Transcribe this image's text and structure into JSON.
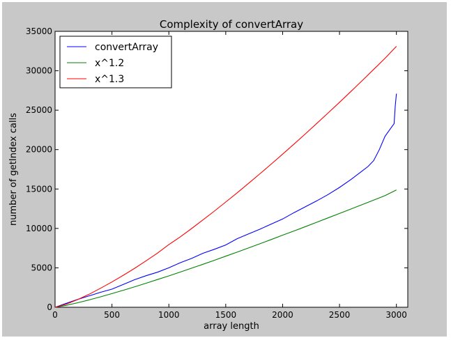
{
  "chart_data": {
    "type": "line",
    "title": "Complexity of convertArray",
    "xlabel": "array length",
    "ylabel": "number of getIndex calls",
    "xlim": [
      0,
      3100
    ],
    "ylim": [
      0,
      35000
    ],
    "xticks": [
      0,
      500,
      1000,
      1500,
      2000,
      2500,
      3000
    ],
    "yticks": [
      0,
      5000,
      10000,
      15000,
      20000,
      25000,
      30000,
      35000
    ],
    "grid": false,
    "legend_position": "top-left",
    "series": [
      {
        "name": "convertArray",
        "color": "#0000ff",
        "x": [
          0,
          100,
          200,
          300,
          400,
          500,
          600,
          700,
          800,
          900,
          1000,
          1100,
          1200,
          1300,
          1400,
          1500,
          1600,
          1700,
          1800,
          1900,
          2000,
          2100,
          2200,
          2300,
          2400,
          2500,
          2600,
          2700,
          2750,
          2800,
          2850,
          2900,
          2950,
          2980,
          2990,
          3000
        ],
        "y": [
          0,
          500,
          1000,
          1450,
          1900,
          2300,
          2900,
          3500,
          4000,
          4450,
          5000,
          5650,
          6200,
          6850,
          7350,
          7900,
          8700,
          9300,
          9900,
          10550,
          11200,
          12000,
          12750,
          13500,
          14300,
          15200,
          16200,
          17300,
          17850,
          18600,
          20000,
          21700,
          22700,
          23300,
          25500,
          27100
        ]
      },
      {
        "name": "x^1.2",
        "color": "#008000",
        "x": [
          0,
          100,
          200,
          300,
          400,
          500,
          600,
          700,
          800,
          900,
          1000,
          1100,
          1200,
          1300,
          1400,
          1500,
          1600,
          1700,
          1800,
          1900,
          2000,
          2100,
          2200,
          2300,
          2400,
          2500,
          2600,
          2700,
          2800,
          2900,
          3000
        ],
        "y": [
          0,
          251,
          577,
          938,
          1325,
          1733,
          2158,
          2598,
          3050,
          3514,
          3981,
          4467,
          4957,
          5455,
          5961,
          6475,
          6995,
          7521,
          8053,
          8590,
          9146,
          9677,
          10226,
          10779,
          11336,
          11896,
          12460,
          13027,
          13597,
          14170,
          14880
        ]
      },
      {
        "name": "x^1.3",
        "color": "#ff0000",
        "x": [
          0,
          100,
          200,
          300,
          400,
          500,
          600,
          700,
          800,
          900,
          1000,
          1100,
          1200,
          1300,
          1400,
          1500,
          1600,
          1700,
          1800,
          1900,
          2000,
          2100,
          2200,
          2300,
          2400,
          2500,
          2600,
          2700,
          2800,
          2900,
          3000
        ],
        "y": [
          0,
          398,
          980,
          1652,
          2412,
          3204,
          4054,
          4952,
          5891,
          6868,
          7943,
          8921,
          9987,
          11081,
          12201,
          13347,
          14517,
          15711,
          16927,
          18165,
          19423,
          20702,
          22000,
          23317,
          24652,
          26005,
          27375,
          28762,
          30165,
          31584,
          33100
        ]
      }
    ]
  }
}
